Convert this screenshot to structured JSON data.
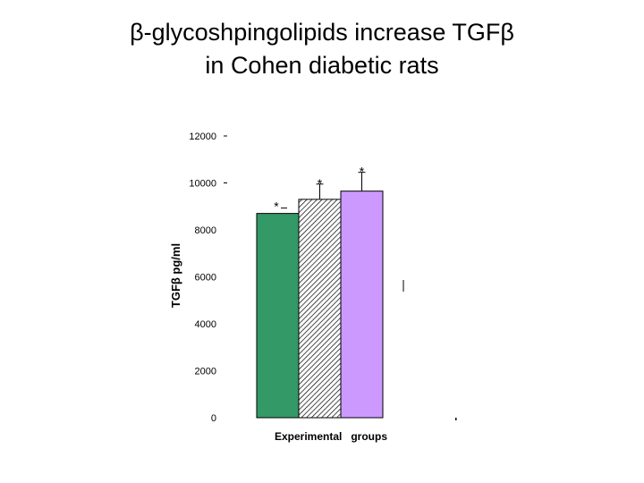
{
  "slide": {
    "title_line1": "β-glycoshpingolipids increase TGFβ",
    "title_line2": "in Cohen diabetic rats"
  },
  "chart_data": {
    "type": "bar",
    "title": "",
    "xlabel": "Experimental   groups",
    "ylabel": "TGFβ pg/ml",
    "ylim": [
      0,
      12000
    ],
    "yticks": [
      0,
      2000,
      4000,
      6000,
      8000,
      10000,
      12000
    ],
    "grid": false,
    "legend": "none",
    "categories": [
      "",
      "",
      ""
    ],
    "values": [
      8700,
      9300,
      9650
    ],
    "errors": [
      0,
      650,
      800
    ],
    "significance": [
      "*",
      "*",
      "*"
    ],
    "colors": [
      "#339966",
      "#ffffff",
      "#cc99ff"
    ],
    "patterns": [
      "solid",
      "hatch",
      "solid"
    ]
  }
}
